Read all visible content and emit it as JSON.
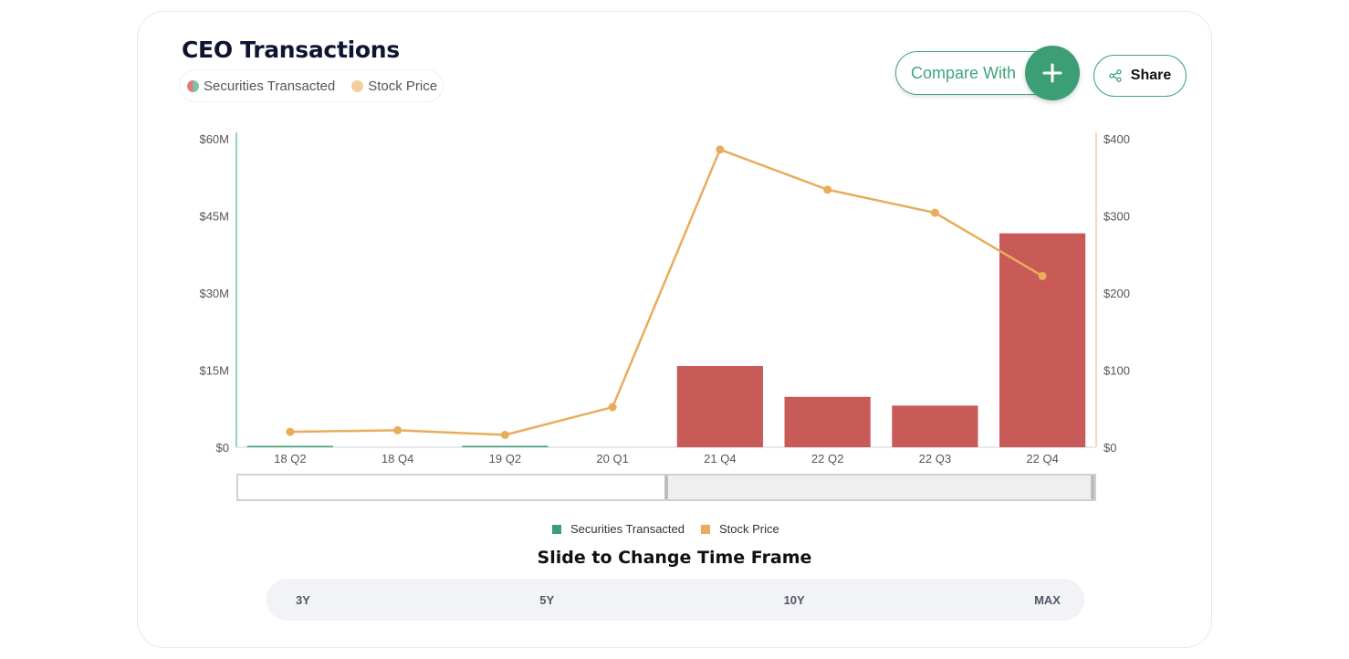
{
  "header": {
    "title": "CEO Transactions",
    "legend": [
      {
        "label": "Securities Transacted",
        "icon": "split-dot-icon"
      },
      {
        "label": "Stock Price",
        "icon": "dot-icon"
      }
    ],
    "compare_label": "Compare With",
    "share_label": "Share"
  },
  "colors": {
    "bar": "#c85a57",
    "line": "#e8ad5b",
    "left_axis": "#6ccaa8",
    "right_axis": "#f0cf9e",
    "securities_legend": "#3c9e74",
    "price_legend": "#e8ad5b"
  },
  "chart_data": {
    "type": "bar+line",
    "categories": [
      "18 Q2",
      "18 Q4",
      "19 Q2",
      "20 Q1",
      "21 Q4",
      "22 Q2",
      "22 Q3",
      "22 Q4"
    ],
    "series": [
      {
        "name": "Securities Transacted",
        "type": "bar",
        "axis": "left",
        "values": [
          0.05,
          0,
          0.05,
          0,
          15.8,
          9.8,
          8.1,
          41.6
        ]
      },
      {
        "name": "Stock Price",
        "type": "line",
        "axis": "right",
        "values": [
          20,
          22,
          16,
          52,
          386,
          334,
          304,
          222
        ]
      }
    ],
    "y_left": {
      "ticks": [
        0,
        15,
        30,
        45,
        60
      ],
      "tick_labels": [
        "$0",
        "$15M",
        "$30M",
        "$45M",
        "$60M"
      ],
      "range": [
        0,
        60
      ]
    },
    "y_right": {
      "ticks": [
        0,
        100,
        200,
        300,
        400
      ],
      "tick_labels": [
        "$0",
        "$100",
        "$200",
        "$300",
        "$400"
      ],
      "range": [
        0,
        400
      ]
    },
    "legend_position": "bottom",
    "grid": false
  },
  "bottom_legend": [
    {
      "label": "Securities Transacted"
    },
    {
      "label": "Stock Price"
    }
  ],
  "slider": {
    "selection_start": 0.5,
    "selection_end": 1.0
  },
  "timeframe": {
    "title": "Slide to Change Time Frame",
    "options": [
      "3Y",
      "5Y",
      "10Y",
      "MAX"
    ]
  }
}
